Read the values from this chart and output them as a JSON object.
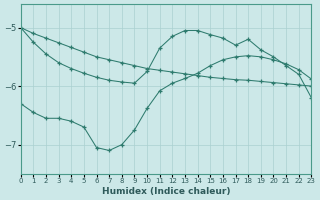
{
  "xlabel": "Humidex (Indice chaleur)",
  "bg_color": "#cce8e8",
  "line_color": "#2e7b6e",
  "grid_color": "#aad0d0",
  "xlim": [
    0,
    23
  ],
  "ylim": [
    -7.5,
    -4.6
  ],
  "yticks": [
    -7,
    -6,
    -5
  ],
  "xticks": [
    0,
    1,
    2,
    3,
    4,
    5,
    6,
    7,
    8,
    9,
    10,
    11,
    12,
    13,
    14,
    15,
    16,
    17,
    18,
    19,
    20,
    21,
    22,
    23
  ],
  "series1_x": [
    0,
    1,
    2,
    3,
    4,
    5,
    6,
    7,
    8,
    9,
    10,
    11,
    12,
    13,
    14,
    15,
    16,
    17,
    18,
    19,
    20,
    21,
    22,
    23
  ],
  "series1_y": [
    -5.0,
    -5.1,
    -5.18,
    -5.26,
    -5.34,
    -5.42,
    -5.5,
    -5.55,
    -5.6,
    -5.65,
    -5.7,
    -5.73,
    -5.76,
    -5.79,
    -5.82,
    -5.85,
    -5.87,
    -5.89,
    -5.9,
    -5.92,
    -5.94,
    -5.96,
    -5.98,
    -6.0
  ],
  "series2_x": [
    0,
    1,
    2,
    3,
    4,
    5,
    6,
    7,
    8,
    9,
    10,
    11,
    12,
    13,
    14,
    15,
    16,
    17,
    18,
    19,
    20,
    21,
    22,
    23
  ],
  "series2_y": [
    -5.0,
    -5.25,
    -5.45,
    -5.6,
    -5.7,
    -5.78,
    -5.85,
    -5.9,
    -5.93,
    -5.95,
    -5.75,
    -5.35,
    -5.15,
    -5.05,
    -5.05,
    -5.12,
    -5.18,
    -5.3,
    -5.2,
    -5.38,
    -5.5,
    -5.65,
    -5.8,
    -6.2
  ],
  "series3_x": [
    0,
    1,
    2,
    3,
    4,
    5,
    6,
    7,
    8,
    9,
    10,
    11,
    12,
    13,
    14,
    15,
    16,
    17,
    18,
    19,
    20,
    21,
    22,
    23
  ],
  "series3_y": [
    -6.3,
    -6.45,
    -6.55,
    -6.55,
    -6.6,
    -6.7,
    -7.05,
    -7.1,
    -7.0,
    -6.75,
    -6.38,
    -6.08,
    -5.95,
    -5.87,
    -5.78,
    -5.65,
    -5.55,
    -5.5,
    -5.48,
    -5.5,
    -5.55,
    -5.62,
    -5.72,
    -5.88
  ]
}
